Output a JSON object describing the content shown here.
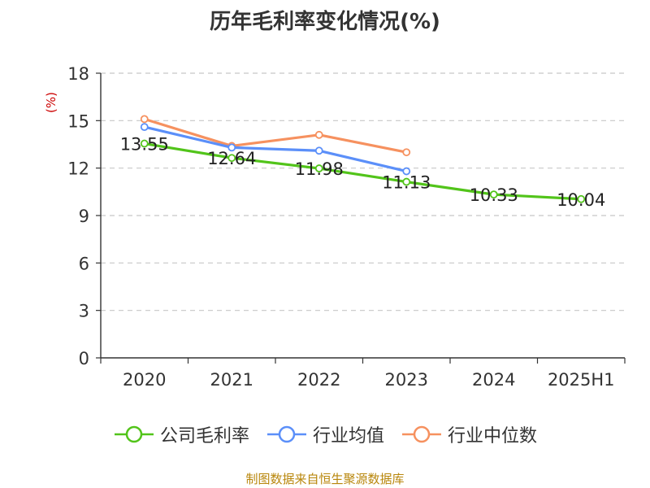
{
  "chart_data": {
    "type": "line",
    "title": "历年毛利率变化情况(%)",
    "ylabel": "(%)",
    "xlabel": "",
    "categories": [
      "2020",
      "2021",
      "2022",
      "2023",
      "2024",
      "2025H1"
    ],
    "ylim": [
      0,
      18
    ],
    "yticks": [
      0,
      3,
      6,
      9,
      12,
      15,
      18
    ],
    "grid": true,
    "legend_position": "bottom",
    "series": [
      {
        "name": "公司毛利率",
        "color": "#52c41a",
        "show_labels": true,
        "values": [
          13.55,
          12.64,
          11.98,
          11.13,
          10.33,
          10.04
        ]
      },
      {
        "name": "行业均值",
        "color": "#5b8ff9",
        "show_labels": false,
        "values": [
          14.6,
          13.3,
          13.1,
          11.8,
          null,
          null
        ]
      },
      {
        "name": "行业中位数",
        "color": "#f6915f",
        "show_labels": false,
        "values": [
          15.1,
          13.4,
          14.1,
          13.0,
          null,
          null
        ]
      }
    ]
  },
  "source": "制图数据来自恒生聚源数据库"
}
